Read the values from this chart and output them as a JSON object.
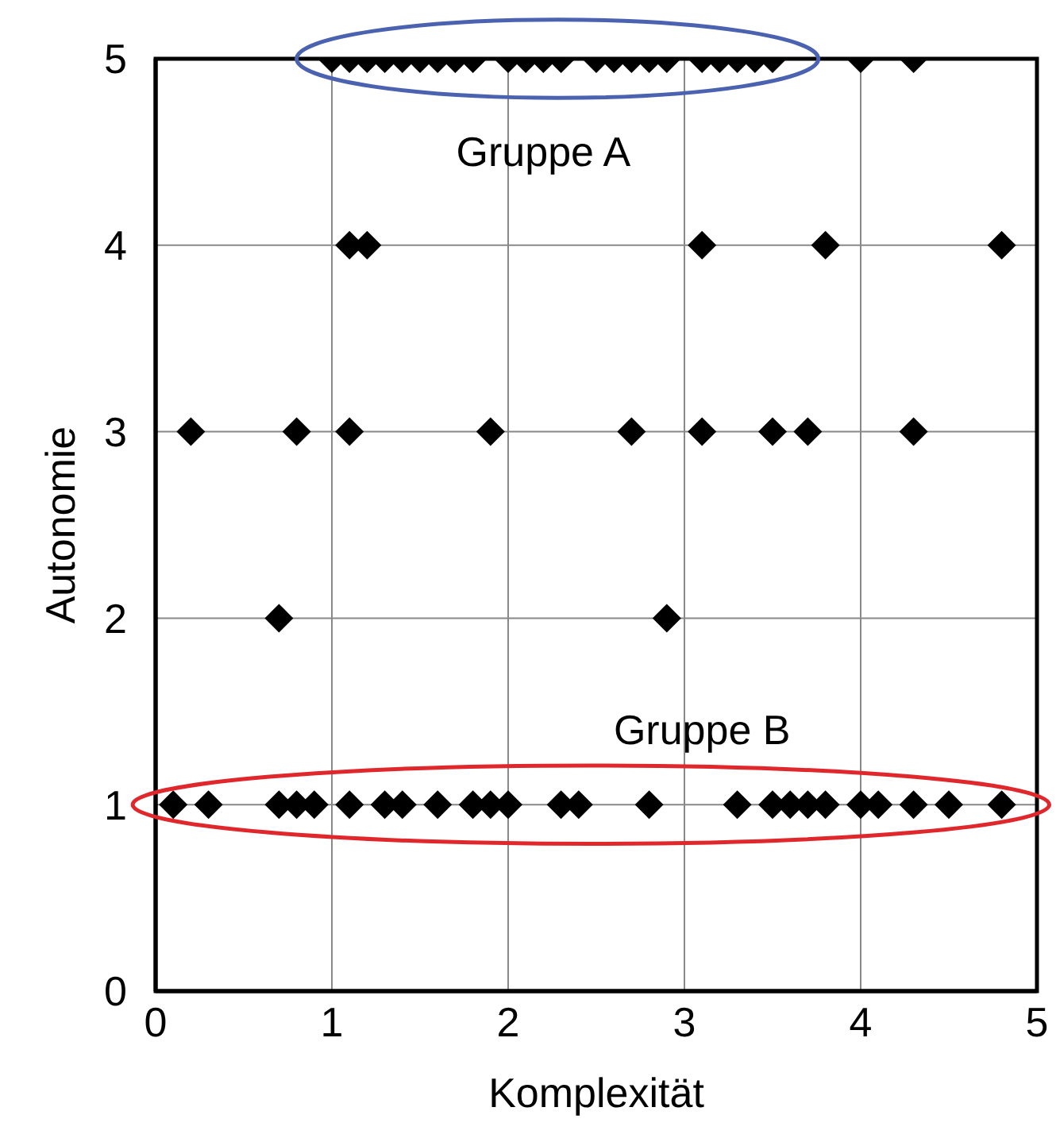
{
  "chart_data": {
    "type": "scatter",
    "xlabel": "Komplexität",
    "ylabel": "Autonomie",
    "series": [
      {
        "color": "#000000",
        "x": [
          1.0,
          1.1,
          1.2,
          1.3,
          1.4,
          1.5,
          1.6,
          1.7,
          1.8,
          2.0,
          2.1,
          2.2,
          2.3,
          2.5,
          2.6,
          2.7,
          2.8,
          2.9,
          3.1,
          3.2,
          3.3,
          3.4,
          3.5,
          4.0,
          4.3,
          1.1,
          1.2,
          3.1,
          3.8,
          4.8,
          0.2,
          0.8,
          1.1,
          1.9,
          2.7,
          3.1,
          3.5,
          3.7,
          4.3,
          0.7,
          2.9,
          0.1,
          0.3,
          0.7,
          0.8,
          0.9,
          1.1,
          1.3,
          1.4,
          1.6,
          1.8,
          1.9,
          2.0,
          2.3,
          2.4,
          2.8,
          3.3,
          3.5,
          3.6,
          3.7,
          3.8,
          4.0,
          4.1,
          4.3,
          4.5,
          4.8
        ],
        "values": [
          5,
          5,
          5,
          5,
          5,
          5,
          5,
          5,
          5,
          5,
          5,
          5,
          5,
          5,
          5,
          5,
          5,
          5,
          5,
          5,
          5,
          5,
          5,
          5,
          5,
          4,
          4,
          4,
          4,
          4,
          3,
          3,
          3,
          3,
          3,
          3,
          3,
          3,
          3,
          2,
          2,
          1,
          1,
          1,
          1,
          1,
          1,
          1,
          1,
          1,
          1,
          1,
          1,
          1,
          1,
          1,
          1,
          1,
          1,
          1,
          1,
          1,
          1,
          1,
          1,
          1
        ]
      }
    ],
    "xlim": [
      0,
      5
    ],
    "xticks": [
      0,
      1,
      2,
      3,
      4,
      5
    ],
    "ylim": [
      0,
      5
    ],
    "yticks": [
      0,
      1,
      2,
      3,
      4,
      5
    ],
    "grid": true,
    "marker": "diamond",
    "annotations": [
      "Gruppe A",
      "Gruppe B"
    ]
  }
}
